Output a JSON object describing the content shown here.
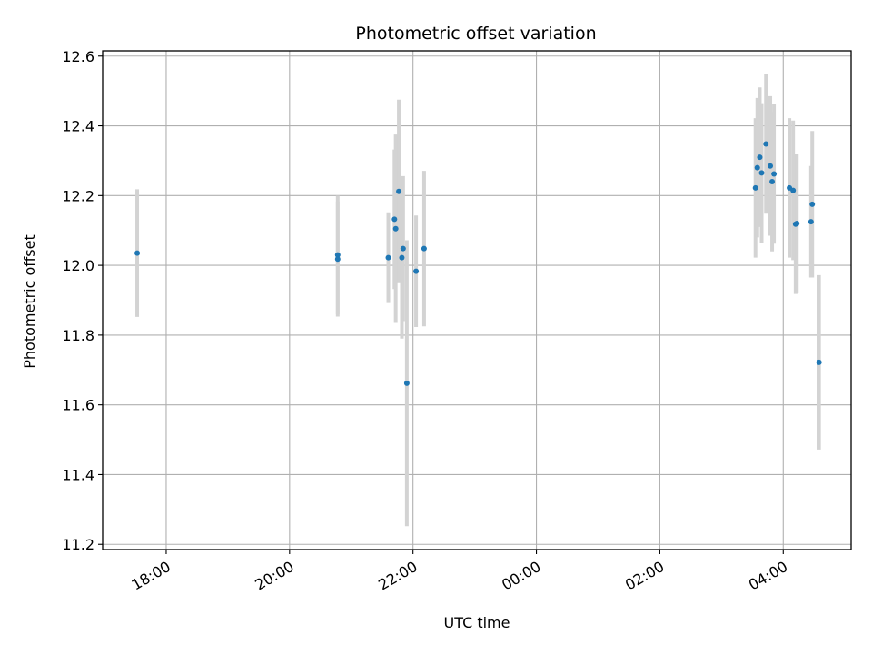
{
  "chart_data": {
    "type": "scatter",
    "title": "Photometric offset variation",
    "xlabel": "UTC time",
    "ylabel": "Photometric offset",
    "x_unit": "hours since midnight of first night (values past 24:00 are the next day)",
    "xlim": [
      16.97,
      29.1
    ],
    "ylim": [
      11.185,
      12.615
    ],
    "xticks": [
      {
        "value": 18,
        "label": "18:00"
      },
      {
        "value": 20,
        "label": "20:00"
      },
      {
        "value": 22,
        "label": "22:00"
      },
      {
        "value": 24,
        "label": "00:00"
      },
      {
        "value": 26,
        "label": "02:00"
      },
      {
        "value": 28,
        "label": "04:00"
      }
    ],
    "yticks": [
      {
        "value": 11.2,
        "label": "11.2"
      },
      {
        "value": 11.4,
        "label": "11.4"
      },
      {
        "value": 11.6,
        "label": "11.6"
      },
      {
        "value": 11.8,
        "label": "11.8"
      },
      {
        "value": 12.0,
        "label": "12.0"
      },
      {
        "value": 12.2,
        "label": "12.2"
      },
      {
        "value": 12.4,
        "label": "12.4"
      },
      {
        "value": 12.6,
        "label": "12.6"
      }
    ],
    "grid": true,
    "colors": {
      "point": "#1f77b4",
      "errorbar": "#d3d3d3",
      "grid": "#b0b0b0"
    },
    "series": [
      {
        "points": [
          {
            "x": 17.53,
            "y": 12.035,
            "err": 0.183
          },
          {
            "x": 20.78,
            "y": 12.03,
            "err": 0.17
          },
          {
            "x": 20.78,
            "y": 12.018,
            "err": 0.165
          },
          {
            "x": 21.6,
            "y": 12.022,
            "err": 0.13
          },
          {
            "x": 21.7,
            "y": 12.132,
            "err": 0.2
          },
          {
            "x": 21.72,
            "y": 12.105,
            "err": 0.27
          },
          {
            "x": 21.77,
            "y": 12.212,
            "err": 0.263
          },
          {
            "x": 21.82,
            "y": 12.022,
            "err": 0.232
          },
          {
            "x": 21.84,
            "y": 12.048,
            "err": 0.208
          },
          {
            "x": 21.9,
            "y": 11.662,
            "err": 0.41
          },
          {
            "x": 22.05,
            "y": 11.983,
            "err": 0.16
          },
          {
            "x": 22.18,
            "y": 12.048,
            "err": 0.223
          },
          {
            "x": 27.55,
            "y": 12.222,
            "err": 0.2
          },
          {
            "x": 27.58,
            "y": 12.28,
            "err": 0.2
          },
          {
            "x": 27.62,
            "y": 12.31,
            "err": 0.2
          },
          {
            "x": 27.65,
            "y": 12.265,
            "err": 0.2
          },
          {
            "x": 27.72,
            "y": 12.348,
            "err": 0.2
          },
          {
            "x": 27.79,
            "y": 12.285,
            "err": 0.2
          },
          {
            "x": 27.82,
            "y": 12.24,
            "err": 0.2
          },
          {
            "x": 27.85,
            "y": 12.262,
            "err": 0.2
          },
          {
            "x": 28.1,
            "y": 12.222,
            "err": 0.2
          },
          {
            "x": 28.16,
            "y": 12.215,
            "err": 0.2
          },
          {
            "x": 28.2,
            "y": 12.118,
            "err": 0.2
          },
          {
            "x": 28.22,
            "y": 12.12,
            "err": 0.2
          },
          {
            "x": 28.45,
            "y": 12.125,
            "err": 0.16
          },
          {
            "x": 28.47,
            "y": 12.175,
            "err": 0.21
          },
          {
            "x": 28.58,
            "y": 11.722,
            "err": 0.25
          }
        ]
      }
    ]
  }
}
